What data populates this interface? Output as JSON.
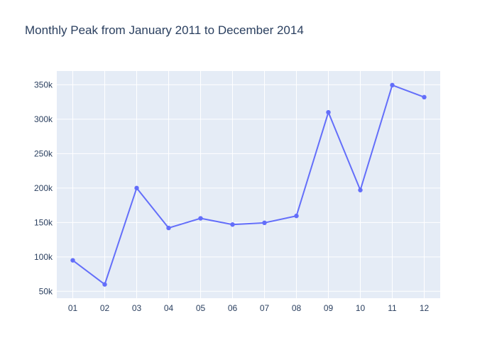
{
  "chart_data": {
    "type": "line",
    "title": "Monthly Peak from January 2011 to December 2014",
    "xlabel": "",
    "ylabel": "",
    "categories": [
      "01",
      "02",
      "03",
      "04",
      "05",
      "06",
      "07",
      "08",
      "09",
      "10",
      "11",
      "12"
    ],
    "series": [
      {
        "values": [
          95000,
          60000,
          200000,
          142000,
          156000,
          147000,
          149500,
          159500,
          310000,
          197000,
          349500,
          332000
        ]
      }
    ],
    "ylim": [
      40000,
      370000
    ],
    "yticks": [
      50000,
      100000,
      150000,
      200000,
      250000,
      300000,
      350000
    ],
    "ytick_labels": [
      "50k",
      "100k",
      "150k",
      "200k",
      "250k",
      "300k",
      "350k"
    ],
    "grid": true,
    "colors": {
      "line": "#636efa",
      "plot_background": "#e5ecf6",
      "grid": "#ffffff",
      "text": "#2a3f5f"
    }
  }
}
